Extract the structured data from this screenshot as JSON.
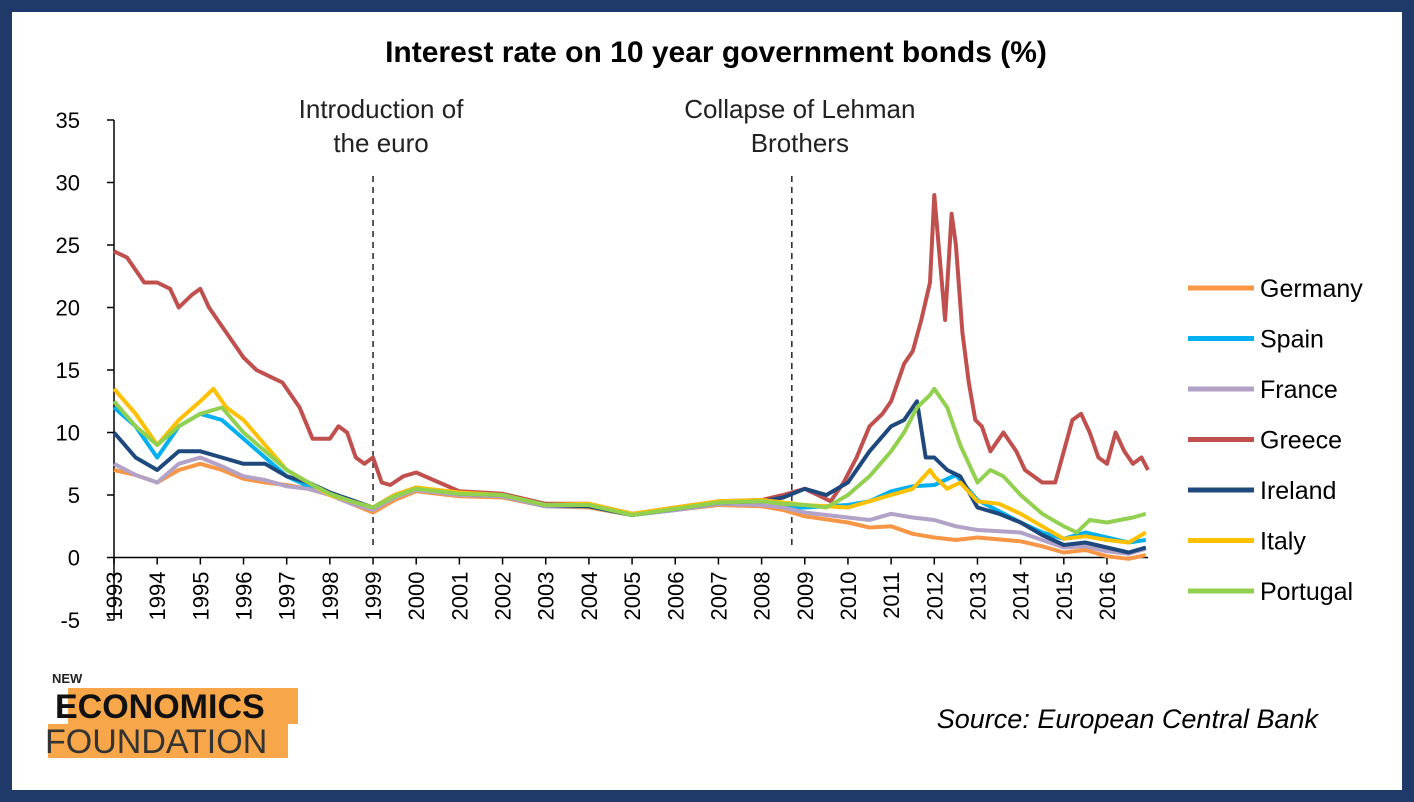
{
  "chart_data": {
    "type": "line",
    "title": "Interest rate on 10 year government bonds (%)",
    "xlabel": "",
    "ylabel": "",
    "ylim": [
      -5,
      35
    ],
    "yticks": [
      35,
      30,
      25,
      20,
      15,
      10,
      5,
      0,
      -5
    ],
    "xlim": [
      1993,
      2016.95
    ],
    "xticks": [
      "1993",
      "1994",
      "1995",
      "1996",
      "1997",
      "1998",
      "1999",
      "2000",
      "2001",
      "2002",
      "2003",
      "2004",
      "2005",
      "2006",
      "2007",
      "2008",
      "2009",
      "2010",
      "2011",
      "2012",
      "2013",
      "2014",
      "2015",
      "2016"
    ],
    "grid": false,
    "legend_position": "right",
    "annotations": [
      {
        "text_lines": [
          "Introduction of",
          "the euro"
        ],
        "x": 1999
      },
      {
        "text_lines": [
          "Collapse of Lehman",
          "Brothers"
        ],
        "x": 2008.7
      }
    ],
    "series": [
      {
        "name": "Germany",
        "color": "#f79646",
        "x": [
          1993,
          1993.5,
          1994,
          1994.5,
          1995,
          1995.5,
          1996,
          1996.5,
          1997,
          1997.5,
          1998,
          1998.5,
          1999,
          1999.5,
          2000,
          2001,
          2002,
          2003,
          2004,
          2005,
          2006,
          2007,
          2008,
          2008.5,
          2009,
          2010,
          2010.5,
          2011,
          2011.5,
          2012,
          2012.5,
          2013,
          2014,
          2014.5,
          2015,
          2015.5,
          2016,
          2016.5,
          2016.9
        ],
        "y": [
          7.0,
          6.6,
          6.0,
          7.0,
          7.5,
          7.0,
          6.3,
          6.0,
          5.8,
          5.5,
          5.0,
          4.3,
          3.6,
          4.6,
          5.3,
          4.9,
          4.8,
          4.1,
          4.0,
          3.4,
          3.8,
          4.2,
          4.1,
          3.8,
          3.3,
          2.8,
          2.4,
          2.5,
          1.9,
          1.6,
          1.4,
          1.6,
          1.3,
          0.9,
          0.4,
          0.6,
          0.1,
          -0.1,
          0.2
        ]
      },
      {
        "name": "Spain",
        "color": "#00b0f0",
        "x": [
          1993,
          1993.5,
          1994,
          1994.5,
          1995,
          1995.5,
          1996,
          1996.5,
          1997,
          1997.5,
          1998,
          1998.5,
          1999,
          1999.5,
          2000,
          2001,
          2002,
          2003,
          2004,
          2005,
          2006,
          2007,
          2008,
          2008.5,
          2009,
          2010,
          2010.5,
          2011,
          2011.5,
          2012,
          2012.5,
          2013,
          2014,
          2014.5,
          2015,
          2015.5,
          2016,
          2016.5,
          2016.9
        ],
        "y": [
          12.0,
          10.5,
          8.0,
          10.5,
          11.5,
          11.0,
          9.5,
          8.0,
          6.5,
          5.7,
          5.0,
          4.4,
          3.9,
          4.9,
          5.5,
          5.1,
          4.9,
          4.1,
          4.1,
          3.4,
          3.8,
          4.3,
          4.3,
          4.0,
          4.0,
          4.2,
          4.5,
          5.3,
          5.7,
          5.8,
          6.6,
          4.6,
          2.8,
          2.0,
          1.5,
          2.0,
          1.6,
          1.2,
          1.4
        ]
      },
      {
        "name": "France",
        "color": "#b3a2c7",
        "x": [
          1993,
          1993.5,
          1994,
          1994.5,
          1995,
          1995.5,
          1996,
          1996.5,
          1997,
          1997.5,
          1998,
          1998.5,
          1999,
          1999.5,
          2000,
          2001,
          2002,
          2003,
          2004,
          2005,
          2006,
          2007,
          2008,
          2008.5,
          2009,
          2010,
          2010.5,
          2011,
          2011.5,
          2012,
          2012.5,
          2013,
          2014,
          2014.5,
          2015,
          2015.5,
          2016,
          2016.5,
          2016.9
        ],
        "y": [
          7.5,
          6.6,
          6.0,
          7.5,
          8.0,
          7.3,
          6.5,
          6.2,
          5.7,
          5.5,
          5.0,
          4.3,
          3.8,
          4.8,
          5.4,
          5.0,
          4.9,
          4.1,
          4.1,
          3.4,
          3.8,
          4.3,
          4.2,
          4.0,
          3.6,
          3.2,
          3.0,
          3.5,
          3.2,
          3.0,
          2.5,
          2.2,
          2.0,
          1.4,
          0.8,
          0.9,
          0.5,
          0.3,
          0.7
        ]
      },
      {
        "name": "Greece",
        "color": "#c0504d",
        "x": [
          1993,
          1993.3,
          1993.7,
          1994,
          1994.3,
          1994.5,
          1994.8,
          1995,
          1995.2,
          1995.5,
          1995.8,
          1996,
          1996.3,
          1996.6,
          1996.9,
          1997,
          1997.3,
          1997.6,
          1997.8,
          1998,
          1998.2,
          1998.4,
          1998.6,
          1998.8,
          1999,
          1999.2,
          1999.4,
          1999.7,
          2000,
          2001,
          2002,
          2003,
          2004,
          2005,
          2006,
          2007,
          2008,
          2008.5,
          2009,
          2009.3,
          2009.6,
          2009.9,
          2010.2,
          2010.5,
          2010.8,
          2011,
          2011.3,
          2011.5,
          2011.7,
          2011.9,
          2012,
          2012.1,
          2012.25,
          2012.4,
          2012.5,
          2012.65,
          2012.8,
          2012.95,
          2013.1,
          2013.3,
          2013.6,
          2013.9,
          2014.1,
          2014.3,
          2014.5,
          2014.8,
          2015,
          2015.2,
          2015.4,
          2015.6,
          2015.8,
          2016,
          2016.2,
          2016.4,
          2016.6,
          2016.8,
          2016.95
        ],
        "y": [
          24.5,
          24.0,
          22.0,
          22.0,
          21.5,
          20.0,
          21.0,
          21.5,
          20.0,
          18.5,
          17.0,
          16.0,
          15.0,
          14.5,
          14.0,
          13.5,
          12.0,
          9.5,
          9.5,
          9.5,
          10.5,
          10.0,
          8.0,
          7.5,
          8.0,
          6.0,
          5.8,
          6.5,
          6.8,
          5.3,
          5.1,
          4.3,
          4.3,
          3.5,
          4.0,
          4.5,
          4.6,
          5.0,
          5.5,
          5.0,
          4.5,
          6.0,
          8.0,
          10.5,
          11.5,
          12.5,
          15.5,
          16.5,
          19.0,
          22.0,
          29.0,
          25.0,
          19.0,
          27.5,
          25.0,
          18.0,
          14.0,
          11.0,
          10.5,
          8.5,
          10.0,
          8.5,
          7.0,
          6.5,
          6.0,
          6.0,
          8.5,
          11.0,
          11.5,
          10.0,
          8.0,
          7.5,
          10.0,
          8.5,
          7.5,
          8.0,
          7.0
        ]
      },
      {
        "name": "Ireland",
        "color": "#1f497d",
        "x": [
          1993,
          1993.5,
          1994,
          1994.5,
          1995,
          1995.5,
          1996,
          1996.5,
          1997,
          1997.5,
          1998,
          1998.5,
          1999,
          1999.5,
          2000,
          2001,
          2002,
          2003,
          2004,
          2005,
          2006,
          2007,
          2008,
          2008.5,
          2009,
          2009.5,
          2010,
          2010.5,
          2011,
          2011.3,
          2011.6,
          2011.8,
          2012,
          2012.3,
          2012.6,
          2013,
          2013.5,
          2014,
          2014.5,
          2015,
          2015.5,
          2016,
          2016.5,
          2016.9
        ],
        "y": [
          10.0,
          8.0,
          7.0,
          8.5,
          8.5,
          8.0,
          7.5,
          7.5,
          6.5,
          6.0,
          5.2,
          4.6,
          4.0,
          5.0,
          5.6,
          5.1,
          5.0,
          4.2,
          4.1,
          3.4,
          3.9,
          4.4,
          4.5,
          4.8,
          5.5,
          5.0,
          6.0,
          8.5,
          10.5,
          11.0,
          12.5,
          8.0,
          8.0,
          7.0,
          6.5,
          4.0,
          3.5,
          2.8,
          1.8,
          1.0,
          1.2,
          0.8,
          0.4,
          0.8
        ]
      },
      {
        "name": "Italy",
        "color": "#ffc000",
        "x": [
          1993,
          1993.5,
          1994,
          1994.5,
          1995,
          1995.3,
          1995.6,
          1996,
          1996.5,
          1997,
          1997.5,
          1998,
          1998.5,
          1999,
          1999.5,
          2000,
          2001,
          2002,
          2003,
          2004,
          2005,
          2006,
          2007,
          2008,
          2008.5,
          2009,
          2010,
          2010.5,
          2011,
          2011.5,
          2011.9,
          2012,
          2012.3,
          2012.6,
          2013,
          2013.5,
          2014,
          2014.5,
          2015,
          2015.5,
          2016,
          2016.5,
          2016.9
        ],
        "y": [
          13.5,
          11.5,
          9.0,
          11.0,
          12.5,
          13.5,
          12.0,
          11.0,
          9.0,
          7.0,
          6.0,
          5.0,
          4.5,
          4.0,
          5.0,
          5.6,
          5.2,
          5.0,
          4.2,
          4.3,
          3.5,
          4.0,
          4.5,
          4.6,
          4.4,
          4.2,
          4.0,
          4.5,
          5.0,
          5.5,
          7.0,
          6.5,
          5.5,
          6.0,
          4.5,
          4.3,
          3.5,
          2.5,
          1.5,
          1.7,
          1.4,
          1.2,
          2.0
        ]
      },
      {
        "name": "Portugal",
        "color": "#92d050",
        "x": [
          1993,
          1993.5,
          1994,
          1994.5,
          1995,
          1995.5,
          1996,
          1996.5,
          1997,
          1997.5,
          1998,
          1998.5,
          1999,
          1999.5,
          2000,
          2001,
          2002,
          2003,
          2004,
          2005,
          2006,
          2007,
          2008,
          2008.5,
          2009,
          2009.5,
          2010,
          2010.5,
          2011,
          2011.3,
          2011.6,
          2011.9,
          2012,
          2012.3,
          2012.6,
          2013,
          2013.3,
          2013.6,
          2014,
          2014.5,
          2015,
          2015.3,
          2015.6,
          2016,
          2016.3,
          2016.6,
          2016.9
        ],
        "y": [
          12.5,
          10.5,
          9.0,
          10.5,
          11.5,
          12.0,
          10.0,
          8.5,
          7.0,
          6.0,
          5.1,
          4.5,
          4.0,
          4.9,
          5.5,
          5.1,
          5.0,
          4.2,
          4.2,
          3.4,
          3.9,
          4.4,
          4.5,
          4.3,
          4.2,
          4.0,
          5.0,
          6.5,
          8.5,
          10.0,
          12.0,
          13.0,
          13.5,
          12.0,
          9.0,
          6.0,
          7.0,
          6.5,
          5.0,
          3.5,
          2.5,
          2.0,
          3.0,
          2.8,
          3.0,
          3.2,
          3.5
        ]
      }
    ]
  },
  "source": "Source: European Central Bank",
  "logo": {
    "line1": "NEW",
    "line2": "ECONOMICS",
    "line3": "FOUNDATION"
  },
  "colors": {
    "frame": "#1f3a68",
    "logo_accent": "#f7a64a"
  }
}
